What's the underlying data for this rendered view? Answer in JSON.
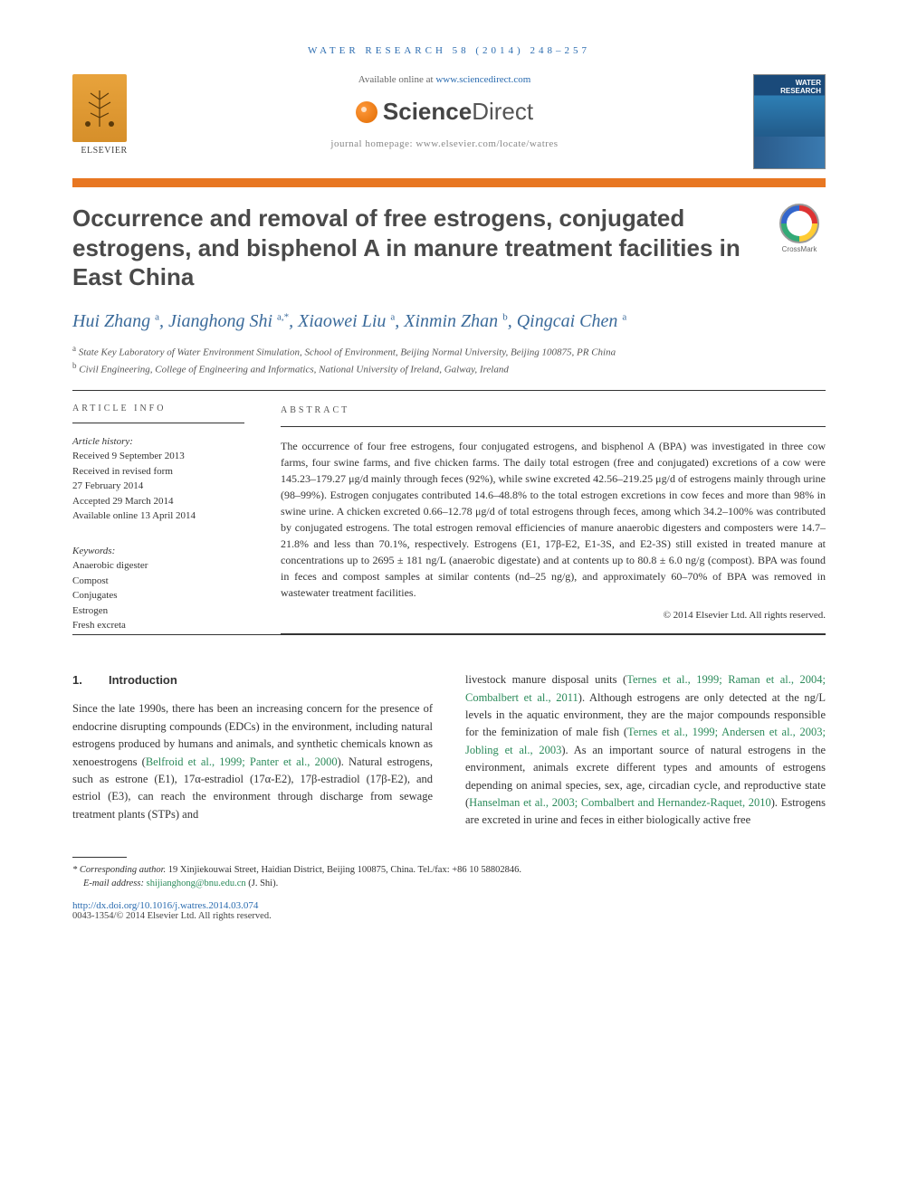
{
  "running_head": "WATER RESEARCH 58 (2014) 248–257",
  "availability": {
    "prefix": "Available online at ",
    "link_text": "www.sciencedirect.com",
    "brand_sci": "Science",
    "brand_dir": "Direct",
    "homepage": "journal homepage: www.elsevier.com/locate/watres"
  },
  "elsevier_label": "ELSEVIER",
  "crossmark_label": "CrossMark",
  "title": "Occurrence and removal of free estrogens, conjugated estrogens, and bisphenol A in manure treatment facilities in East China",
  "authors_html": "Hui Zhang <sup>a</sup>, Jianghong Shi <sup>a,*</sup>, Xiaowei Liu <sup>a</sup>, Xinmin Zhan <sup>b</sup>, Qingcai Chen <sup>a</sup>",
  "affiliations": [
    {
      "sup": "a",
      "text": "State Key Laboratory of Water Environment Simulation, School of Environment, Beijing Normal University, Beijing 100875, PR China"
    },
    {
      "sup": "b",
      "text": "Civil Engineering, College of Engineering and Informatics, National University of Ireland, Galway, Ireland"
    }
  ],
  "article_info_label": "ARTICLE INFO",
  "abstract_label": "ABSTRACT",
  "history": {
    "title": "Article history:",
    "lines": [
      "Received 9 September 2013",
      "Received in revised form",
      "27 February 2014",
      "Accepted 29 March 2014",
      "Available online 13 April 2014"
    ]
  },
  "keywords": {
    "title": "Keywords:",
    "items": [
      "Anaerobic digester",
      "Compost",
      "Conjugates",
      "Estrogen",
      "Fresh excreta"
    ]
  },
  "abstract_text": "The occurrence of four free estrogens, four conjugated estrogens, and bisphenol A (BPA) was investigated in three cow farms, four swine farms, and five chicken farms. The daily total estrogen (free and conjugated) excretions of a cow were 145.23–179.27 μg/d mainly through feces (92%), while swine excreted 42.56–219.25 μg/d of estrogens mainly through urine (98–99%). Estrogen conjugates contributed 14.6–48.8% to the total estrogen excretions in cow feces and more than 98% in swine urine. A chicken excreted 0.66–12.78 μg/d of total estrogens through feces, among which 34.2–100% was contributed by conjugated estrogens. The total estrogen removal efficiencies of manure anaerobic digesters and composters were 14.7–21.8% and less than 70.1%, respectively. Estrogens (E1, 17β-E2, E1-3S, and E2-3S) still existed in treated manure at concentrations up to 2695 ± 181 ng/L (anaerobic digestate) and at contents up to 80.8 ± 6.0 ng/g (compost). BPA was found in feces and compost samples at similar contents (nd–25 ng/g), and approximately 60–70% of BPA was removed in wastewater treatment facilities.",
  "copyright": "© 2014 Elsevier Ltd. All rights reserved.",
  "section1": {
    "num": "1.",
    "title": "Introduction"
  },
  "col1_text_pre": "Since the late 1990s, there has been an increasing concern for the presence of endocrine disrupting compounds (EDCs) in the environment, including natural estrogens produced by humans and animals, and synthetic chemicals known as xenoestrogens (",
  "col1_cite1": "Belfroid et al., 1999; Panter et al., 2000",
  "col1_text_post": "). Natural estrogens, such as estrone (E1), 17α-estradiol (17α-E2), 17β-estradiol (17β-E2), and estriol (E3), can reach the environment through discharge from sewage treatment plants (STPs) and",
  "col2_text1": "livestock manure disposal units (",
  "col2_cite1": "Ternes et al., 1999; Raman et al., 2004; Combalbert et al., 2011",
  "col2_text2": "). Although estrogens are only detected at the ng/L levels in the aquatic environment, they are the major compounds responsible for the feminization of male fish (",
  "col2_cite2": "Ternes et al., 1999; Andersen et al., 2003; Jobling et al., 2003",
  "col2_text3": "). As an important source of natural estrogens in the environment, animals excrete different types and amounts of estrogens depending on animal species, sex, age, circadian cycle, and reproductive state (",
  "col2_cite3": "Hanselman et al., 2003; Combalbert and Hernandez-Raquet, 2010",
  "col2_text4": "). Estrogens are excreted in urine and feces in either biologically active free",
  "footnote": {
    "corr_label": "* Corresponding author.",
    "corr_text": " 19 Xinjiekouwai Street, Haidian District, Beijing 100875, China. Tel./fax: +86 10 58802846.",
    "email_label": "E-mail address: ",
    "email": "shijianghong@bnu.edu.cn",
    "email_suffix": " (J. Shi)."
  },
  "doi": "http://dx.doi.org/10.1016/j.watres.2014.03.074",
  "issn": "0043-1354/© 2014 Elsevier Ltd. All rights reserved."
}
